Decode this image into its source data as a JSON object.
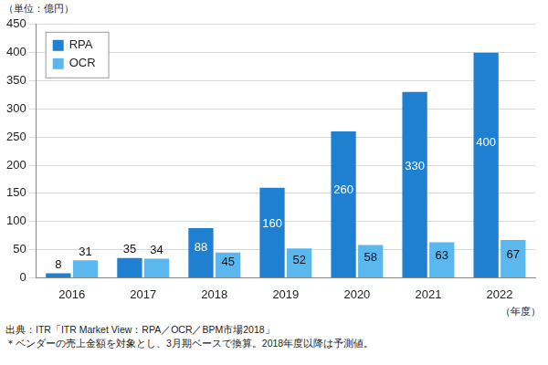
{
  "chart_data": {
    "type": "bar",
    "ylabel": "（単位：億円）",
    "xlabel": "（年度）",
    "annotations": [
      "出典：ITR「ITR Market View：RPA／OCR／BPM市場2018」",
      "＊ベンダーの売上金額を対象とし、3月期ベースで換算。2018年度以降は予測値。"
    ],
    "categories": [
      "2016",
      "2017",
      "2018",
      "2019",
      "2020",
      "2021",
      "2022"
    ],
    "series": [
      {
        "name": "RPA",
        "color": "#1f7fd1",
        "values": [
          8,
          35,
          88,
          160,
          260,
          330,
          400
        ]
      },
      {
        "name": "OCR",
        "color": "#5ab8ee",
        "values": [
          31,
          34,
          45,
          52,
          58,
          63,
          67
        ]
      }
    ],
    "ylim": [
      0,
      450
    ],
    "yticks": [
      0,
      50,
      100,
      150,
      200,
      250,
      300,
      350,
      400,
      450
    ],
    "grid": true,
    "legend": "upper left",
    "data_labels": true
  }
}
